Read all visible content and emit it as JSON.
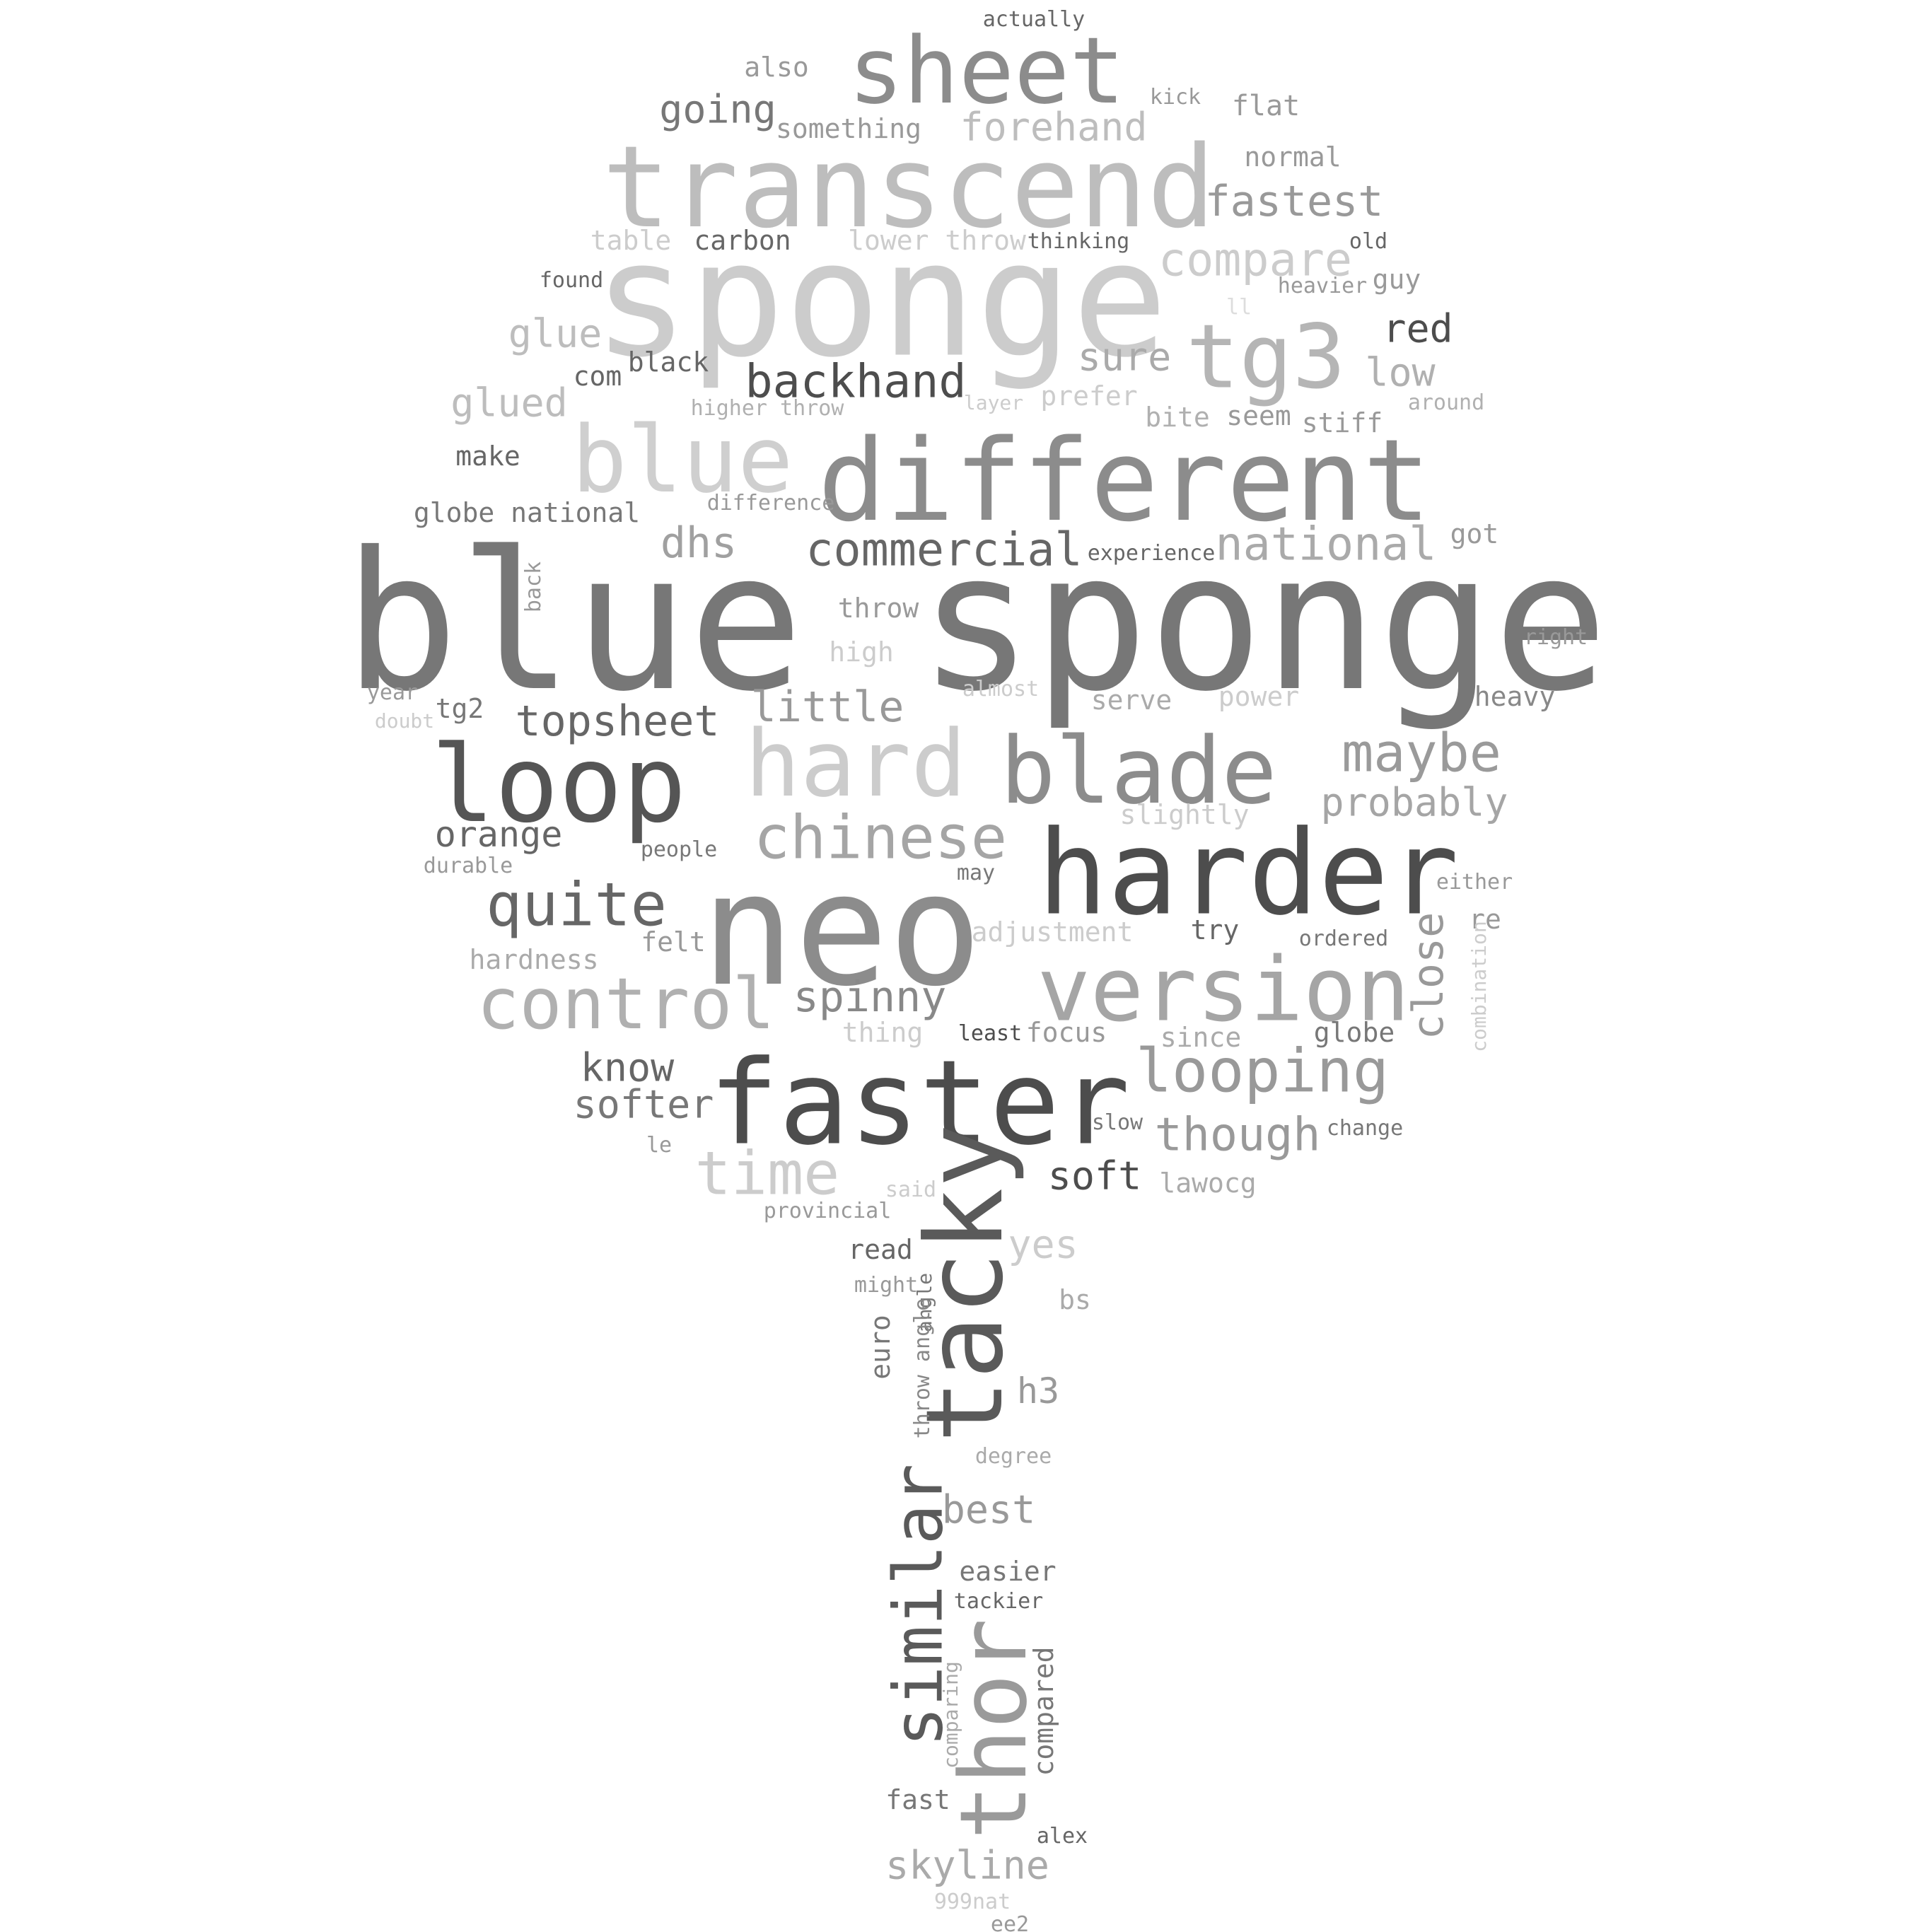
{
  "words": [
    {
      "text": "blue sponge",
      "color": "#777777"
    },
    {
      "text": "neo",
      "color": "#8c8c8c"
    },
    {
      "text": "sponge",
      "color": "#cccccc"
    },
    {
      "text": "transcend",
      "color": "#bdbdbd"
    },
    {
      "text": "different",
      "color": "#8c8c8c"
    },
    {
      "text": "harder",
      "color": "#4d4d4d"
    },
    {
      "text": "faster",
      "color": "#4d4d4d"
    },
    {
      "text": "tacky",
      "color": "#5a5a5a"
    },
    {
      "text": "sheet",
      "color": "#8c8c8c"
    },
    {
      "text": "blue",
      "color": "#cfcfcf"
    },
    {
      "text": "loop",
      "color": "#555555"
    },
    {
      "text": "hard",
      "color": "#cccccc"
    },
    {
      "text": "blade",
      "color": "#8c8c8c"
    },
    {
      "text": "version",
      "color": "#a5a5a5"
    },
    {
      "text": "tg3",
      "color": "#b5b5b5"
    },
    {
      "text": "thor",
      "color": "#9a9a9a"
    },
    {
      "text": "control",
      "color": "#b0b0b0"
    },
    {
      "text": "similar",
      "color": "#5a5a5a"
    },
    {
      "text": "chinese",
      "color": "#a5a5a5"
    },
    {
      "text": "quite",
      "color": "#666666"
    },
    {
      "text": "looping",
      "color": "#999999"
    },
    {
      "text": "time",
      "color": "#cccccc"
    },
    {
      "text": "maybe",
      "color": "#9a9a9a"
    },
    {
      "text": "backhand",
      "color": "#4d4d4d"
    },
    {
      "text": "commercial",
      "color": "#666666"
    },
    {
      "text": "national",
      "color": "#aaaaaa"
    },
    {
      "text": "topsheet",
      "color": "#666666"
    },
    {
      "text": "little",
      "color": "#999999"
    },
    {
      "text": "though",
      "color": "#999999"
    },
    {
      "text": "spinny",
      "color": "#888888"
    },
    {
      "text": "close",
      "color": "#999999"
    },
    {
      "text": "fastest",
      "color": "#999999"
    },
    {
      "text": "compare",
      "color": "#cccccc"
    },
    {
      "text": "forehand",
      "color": "#bdbdbd"
    },
    {
      "text": "going",
      "color": "#777777"
    },
    {
      "text": "dhs",
      "color": "#a0a0a0"
    },
    {
      "text": "glue",
      "color": "#bdbdbd"
    },
    {
      "text": "glued",
      "color": "#bdbdbd"
    },
    {
      "text": "sure",
      "color": "#aaaaaa"
    },
    {
      "text": "red",
      "color": "#4d4d4d"
    },
    {
      "text": "low",
      "color": "#b0b0b0"
    },
    {
      "text": "orange",
      "color": "#666666"
    },
    {
      "text": "probably",
      "color": "#a5a5a5"
    },
    {
      "text": "know",
      "color": "#666666"
    },
    {
      "text": "softer",
      "color": "#777777"
    },
    {
      "text": "soft",
      "color": "#4d4d4d"
    },
    {
      "text": "best",
      "color": "#999999"
    },
    {
      "text": "skyline",
      "color": "#aaaaaa"
    },
    {
      "text": "yes",
      "color": "#cccccc"
    },
    {
      "text": "h3",
      "color": "#999999"
    },
    {
      "text": "carbon",
      "color": "#666666"
    },
    {
      "text": "black",
      "color": "#666666"
    },
    {
      "text": "also",
      "color": "#999999"
    },
    {
      "text": "something",
      "color": "#999999"
    },
    {
      "text": "flat",
      "color": "#999999"
    },
    {
      "text": "normal",
      "color": "#999999"
    },
    {
      "text": "kick",
      "color": "#999999"
    },
    {
      "text": "actually",
      "color": "#666666"
    },
    {
      "text": "table",
      "color": "#cccccc"
    },
    {
      "text": "lower throw",
      "color": "#cccccc"
    },
    {
      "text": "thinking",
      "color": "#666666"
    },
    {
      "text": "old",
      "color": "#666666"
    },
    {
      "text": "found",
      "color": "#666666"
    },
    {
      "text": "heavier",
      "color": "#999999"
    },
    {
      "text": "guy",
      "color": "#999999"
    },
    {
      "text": "ll",
      "color": "#dddddd"
    },
    {
      "text": "com",
      "color": "#666666"
    },
    {
      "text": "higher throw",
      "color": "#b0b0b0"
    },
    {
      "text": "layer",
      "color": "#cccccc"
    },
    {
      "text": "prefer",
      "color": "#cccccc"
    },
    {
      "text": "bite",
      "color": "#b0b0b0"
    },
    {
      "text": "seem",
      "color": "#999999"
    },
    {
      "text": "stiff",
      "color": "#999999"
    },
    {
      "text": "around",
      "color": "#b0b0b0"
    },
    {
      "text": "make",
      "color": "#666666"
    },
    {
      "text": "globe national",
      "color": "#777777"
    },
    {
      "text": "difference",
      "color": "#999999"
    },
    {
      "text": "experience",
      "color": "#666666"
    },
    {
      "text": "got",
      "color": "#999999"
    },
    {
      "text": "back",
      "color": "#999999"
    },
    {
      "text": "throw",
      "color": "#999999"
    },
    {
      "text": "high",
      "color": "#cccccc"
    },
    {
      "text": "right",
      "color": "#999999"
    },
    {
      "text": "year",
      "color": "#999999"
    },
    {
      "text": "doubt",
      "color": "#cccccc"
    },
    {
      "text": "tg2",
      "color": "#777777"
    },
    {
      "text": "almost",
      "color": "#cccccc"
    },
    {
      "text": "serve",
      "color": "#aaaaaa"
    },
    {
      "text": "power",
      "color": "#cccccc"
    },
    {
      "text": "heavy",
      "color": "#888888"
    },
    {
      "text": "slightly",
      "color": "#cccccc"
    },
    {
      "text": "durable",
      "color": "#999999"
    },
    {
      "text": "people",
      "color": "#777777"
    },
    {
      "text": "may",
      "color": "#777777"
    },
    {
      "text": "either",
      "color": "#999999"
    },
    {
      "text": "re",
      "color": "#999999"
    },
    {
      "text": "adjustment",
      "color": "#cccccc"
    },
    {
      "text": "try",
      "color": "#666666"
    },
    {
      "text": "ordered",
      "color": "#777777"
    },
    {
      "text": "felt",
      "color": "#999999"
    },
    {
      "text": "hardness",
      "color": "#aaaaaa"
    },
    {
      "text": "combination",
      "color": "#cccccc"
    },
    {
      "text": "thing",
      "color": "#cccccc"
    },
    {
      "text": "least",
      "color": "#4d4d4d"
    },
    {
      "text": "focus",
      "color": "#999999"
    },
    {
      "text": "since",
      "color": "#aaaaaa"
    },
    {
      "text": "globe",
      "color": "#777777"
    },
    {
      "text": "slow",
      "color": "#777777"
    },
    {
      "text": "change",
      "color": "#777777"
    },
    {
      "text": "le",
      "color": "#999999"
    },
    {
      "text": "lawocg",
      "color": "#aaaaaa"
    },
    {
      "text": "said",
      "color": "#cccccc"
    },
    {
      "text": "provincial",
      "color": "#999999"
    },
    {
      "text": "read",
      "color": "#666666"
    },
    {
      "text": "might",
      "color": "#999999"
    },
    {
      "text": "angle",
      "color": "#777777"
    },
    {
      "text": "euro",
      "color": "#777777"
    },
    {
      "text": "throw angle",
      "color": "#888888"
    },
    {
      "text": "bs",
      "color": "#aaaaaa"
    },
    {
      "text": "degree",
      "color": "#aaaaaa"
    },
    {
      "text": "easier",
      "color": "#777777"
    },
    {
      "text": "tackier",
      "color": "#666666"
    },
    {
      "text": "comparing",
      "color": "#aaaaaa"
    },
    {
      "text": "compared",
      "color": "#777777"
    },
    {
      "text": "fast",
      "color": "#777777"
    },
    {
      "text": "alex",
      "color": "#666666"
    },
    {
      "text": "999nat",
      "color": "#cccccc"
    },
    {
      "text": "ee2",
      "color": "#999999"
    }
  ]
}
